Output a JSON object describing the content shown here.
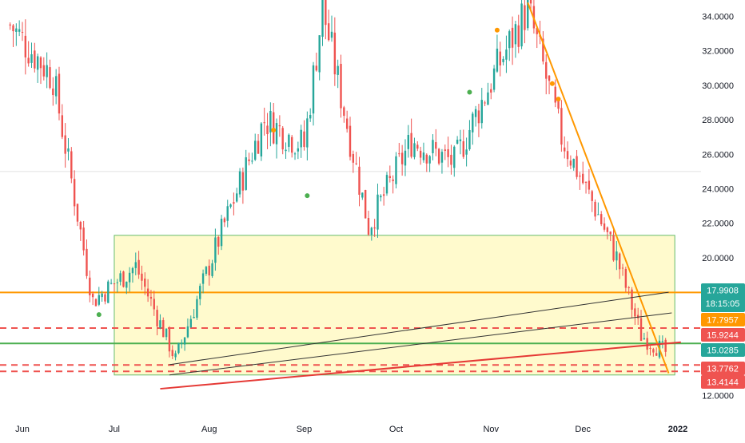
{
  "chart_data": {
    "type": "candlestick",
    "y_axis": {
      "range": [
        11.4,
        35.0
      ],
      "tick_labels": [
        "34.0000",
        "32.0000",
        "30.0000",
        "28.0000",
        "26.0000",
        "24.0000",
        "22.0000",
        "20.0000",
        "12.0000"
      ]
    },
    "x_axis": {
      "tick_labels": [
        "Jun",
        "Jul",
        "Aug",
        "Sep",
        "Oct",
        "Nov",
        "Dec",
        "2022"
      ]
    },
    "price_badges": [
      {
        "label": "17.9908",
        "sublabel": "18:15:05",
        "value": 17.99,
        "color": "#26a69a"
      },
      {
        "label": "17.7957",
        "value": 17.7957,
        "color": "#ff9800"
      },
      {
        "label": "15.9244",
        "value": 15.9244,
        "color": "#ef5350"
      },
      {
        "label": "15.0285",
        "value": 15.0285,
        "color": "#26a69a"
      },
      {
        "label": "13.7762",
        "value": 13.7762,
        "color": "#ef5350"
      },
      {
        "label": "13.4144",
        "value": 13.4144,
        "color": "#ef5350"
      }
    ],
    "horizontal_levels": [
      {
        "value": 17.99,
        "color": "#ff9800",
        "style": "solid"
      },
      {
        "value": 15.92,
        "color": "#ef5350",
        "style": "dashed"
      },
      {
        "value": 15.03,
        "color": "#4caf50",
        "style": "solid"
      },
      {
        "value": 13.78,
        "color": "#ef5350",
        "style": "dashed"
      },
      {
        "value": 13.41,
        "color": "#ef5350",
        "style": "dashed"
      },
      {
        "value": 25.0,
        "color": "#e0e0e0",
        "style": "solid"
      }
    ],
    "zone": {
      "start": "Jul 1",
      "end": "Dec 31",
      "price_high": 21.3,
      "price_low": 13.2,
      "fill": "#fff9c4",
      "border": "#66bb6a"
    },
    "trendlines": [
      {
        "name": "orange-downtrend",
        "from": [
          "Nov 13",
          34.8
        ],
        "to": [
          "Dec 29",
          13.3
        ],
        "color": "#ff9800"
      },
      {
        "name": "red-uptrend",
        "from": [
          "Jul 16",
          12.4
        ],
        "to": [
          "Jan 2",
          15.1
        ],
        "color": "#e53935"
      },
      {
        "name": "black-channel-upper",
        "from": [
          "Jul 19",
          13.8
        ],
        "to": [
          "Dec 29",
          18.0
        ],
        "color": "#333333"
      },
      {
        "name": "black-channel-lower",
        "from": [
          "Jul 19",
          13.2
        ],
        "to": [
          "Dec 30",
          16.8
        ],
        "color": "#333333"
      }
    ],
    "colors": {
      "up": "#26a69a",
      "down": "#ef5350"
    },
    "series": [
      {
        "name": "price",
        "x": [
          "May 28",
          "Jun 11",
          "Jun 24",
          "Jul 8",
          "Jul 21",
          "Aug 5",
          "Aug 19",
          "Sep 1",
          "Sep 7",
          "Sep 22",
          "Oct 6",
          "Oct 20",
          "Nov 3",
          "Nov 13",
          "Nov 24",
          "Dec 6",
          "Dec 12",
          "Dec 20",
          "Dec 28"
        ],
        "y": [
          33.5,
          30.5,
          17.5,
          19.5,
          14.1,
          21.5,
          28.0,
          26.5,
          34.5,
          21.8,
          26.8,
          25.5,
          31.0,
          34.5,
          27.0,
          22.5,
          20.0,
          15.5,
          14.5
        ]
      }
    ]
  }
}
